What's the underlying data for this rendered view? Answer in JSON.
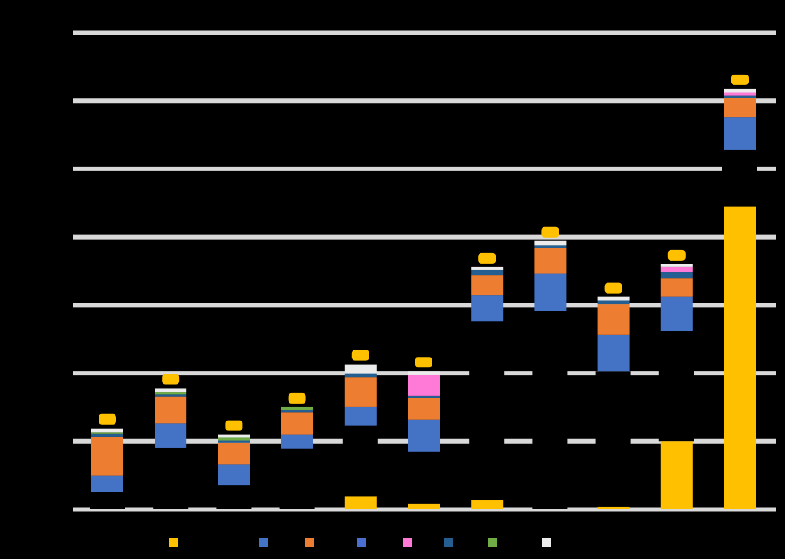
{
  "chart_data": {
    "type": "bar",
    "subtype": "stacked-waterfall",
    "background": "#000000",
    "grid": true,
    "grid_color": "#d9d9d9",
    "legend_position": "bottom",
    "ylim": [
      0,
      7
    ],
    "y_gridlines": [
      0,
      1,
      2,
      3,
      4,
      5,
      6,
      7
    ],
    "categories": [
      "",
      "",
      "",
      "",
      "",
      "",
      "",
      "",
      "",
      "",
      ""
    ],
    "total_color": "#ffc000",
    "series": [
      {
        "key": "s1",
        "color": "#ffc000"
      },
      {
        "key": "s2",
        "color": "#4472c4"
      },
      {
        "key": "s3",
        "color": "#ed7d31"
      },
      {
        "key": "s4",
        "color": "#4a6fd0"
      },
      {
        "key": "s5",
        "color": "#ff79d6"
      },
      {
        "key": "s6",
        "color": "#255e91"
      },
      {
        "key": "s7",
        "color": "#70ad47"
      },
      {
        "key": "s8",
        "color": "#ececec"
      }
    ],
    "columns": [
      {
        "total": 0.0,
        "base": 0.26,
        "segments": [
          [
            "s2",
            0.24
          ],
          [
            "s3",
            0.57
          ],
          [
            "s6",
            0.04
          ],
          [
            "s7",
            0.02
          ],
          [
            "s8",
            0.06
          ]
        ]
      },
      {
        "total": 0.0,
        "base": 0.9,
        "segments": [
          [
            "s2",
            0.36
          ],
          [
            "s3",
            0.4
          ],
          [
            "s6",
            0.03
          ],
          [
            "s7",
            0.03
          ],
          [
            "s8",
            0.06
          ]
        ]
      },
      {
        "total": 0.0,
        "base": 0.35,
        "segments": [
          [
            "s2",
            0.31
          ],
          [
            "s3",
            0.32
          ],
          [
            "s6",
            0.03
          ],
          [
            "s7",
            0.04
          ],
          [
            "s8",
            0.05
          ]
        ]
      },
      {
        "total": 0.0,
        "base": 0.89,
        "segments": [
          [
            "s2",
            0.21
          ],
          [
            "s3",
            0.33
          ],
          [
            "s6",
            0.03
          ],
          [
            "s7",
            0.04
          ]
        ]
      },
      {
        "total": 0.19,
        "base": 1.23,
        "segments": [
          [
            "s2",
            0.27
          ],
          [
            "s3",
            0.44
          ],
          [
            "s6",
            0.06
          ],
          [
            "s8",
            0.13
          ]
        ]
      },
      {
        "total": 0.08,
        "base": 0.85,
        "segments": [
          [
            "s2",
            0.47
          ],
          [
            "s3",
            0.32
          ],
          [
            "s6",
            0.03
          ],
          [
            "s5",
            0.3
          ],
          [
            "s8",
            0.06
          ]
        ]
      },
      {
        "total": 0.13,
        "base": 2.76,
        "segments": [
          [
            "s2",
            0.38
          ],
          [
            "s3",
            0.3
          ],
          [
            "s6",
            0.08
          ],
          [
            "s8",
            0.04
          ]
        ]
      },
      {
        "total": 0.0,
        "base": 2.92,
        "segments": [
          [
            "s2",
            0.54
          ],
          [
            "s3",
            0.38
          ],
          [
            "s6",
            0.04
          ],
          [
            "s8",
            0.06
          ]
        ]
      },
      {
        "total": 0.04,
        "base": 2.03,
        "segments": [
          [
            "s2",
            0.54
          ],
          [
            "s3",
            0.44
          ],
          [
            "s6",
            0.06
          ],
          [
            "s8",
            0.05
          ]
        ]
      },
      {
        "total": 1.0,
        "base": 2.62,
        "segments": [
          [
            "s2",
            0.5
          ],
          [
            "s3",
            0.28
          ],
          [
            "s6",
            0.08
          ],
          [
            "s5",
            0.08
          ],
          [
            "s8",
            0.04
          ]
        ]
      },
      {
        "total": 4.45,
        "base": 5.28,
        "segments": [
          [
            "s2",
            0.48
          ],
          [
            "s3",
            0.28
          ],
          [
            "s6",
            0.04
          ],
          [
            "s5",
            0.04
          ],
          [
            "s8",
            0.06
          ]
        ]
      }
    ],
    "increment_marker_color": "#ffc000"
  }
}
